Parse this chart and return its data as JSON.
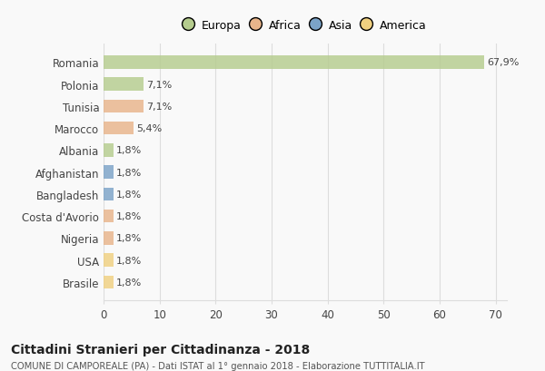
{
  "countries": [
    "Brasile",
    "USA",
    "Nigeria",
    "Costa d'Avorio",
    "Bangladesh",
    "Afghanistan",
    "Albania",
    "Marocco",
    "Tunisia",
    "Polonia",
    "Romania"
  ],
  "values": [
    1.8,
    1.8,
    1.8,
    1.8,
    1.8,
    1.8,
    1.8,
    5.4,
    7.1,
    7.1,
    67.9
  ],
  "labels": [
    "1,8%",
    "1,8%",
    "1,8%",
    "1,8%",
    "1,8%",
    "1,8%",
    "1,8%",
    "5,4%",
    "7,1%",
    "7,1%",
    "67,9%"
  ],
  "colors": [
    "#f0d080",
    "#f0d080",
    "#e8b48a",
    "#e8b48a",
    "#7ba3c8",
    "#7ba3c8",
    "#b5cc8e",
    "#e8b48a",
    "#e8b48a",
    "#b5cc8e",
    "#b5cc8e"
  ],
  "legend_labels": [
    "Europa",
    "Africa",
    "Asia",
    "America"
  ],
  "legend_colors": [
    "#b5cc8e",
    "#e8b48a",
    "#7ba3c8",
    "#f0d080"
  ],
  "title": "Cittadini Stranieri per Cittadinanza - 2018",
  "subtitle": "COMUNE DI CAMPOREALE (PA) - Dati ISTAT al 1° gennaio 2018 - Elaborazione TUTTITALIA.IT",
  "xlim": [
    0,
    72
  ],
  "xticks": [
    0,
    10,
    20,
    30,
    40,
    50,
    60,
    70
  ],
  "bg_color": "#f9f9f9",
  "grid_color": "#dddddd"
}
